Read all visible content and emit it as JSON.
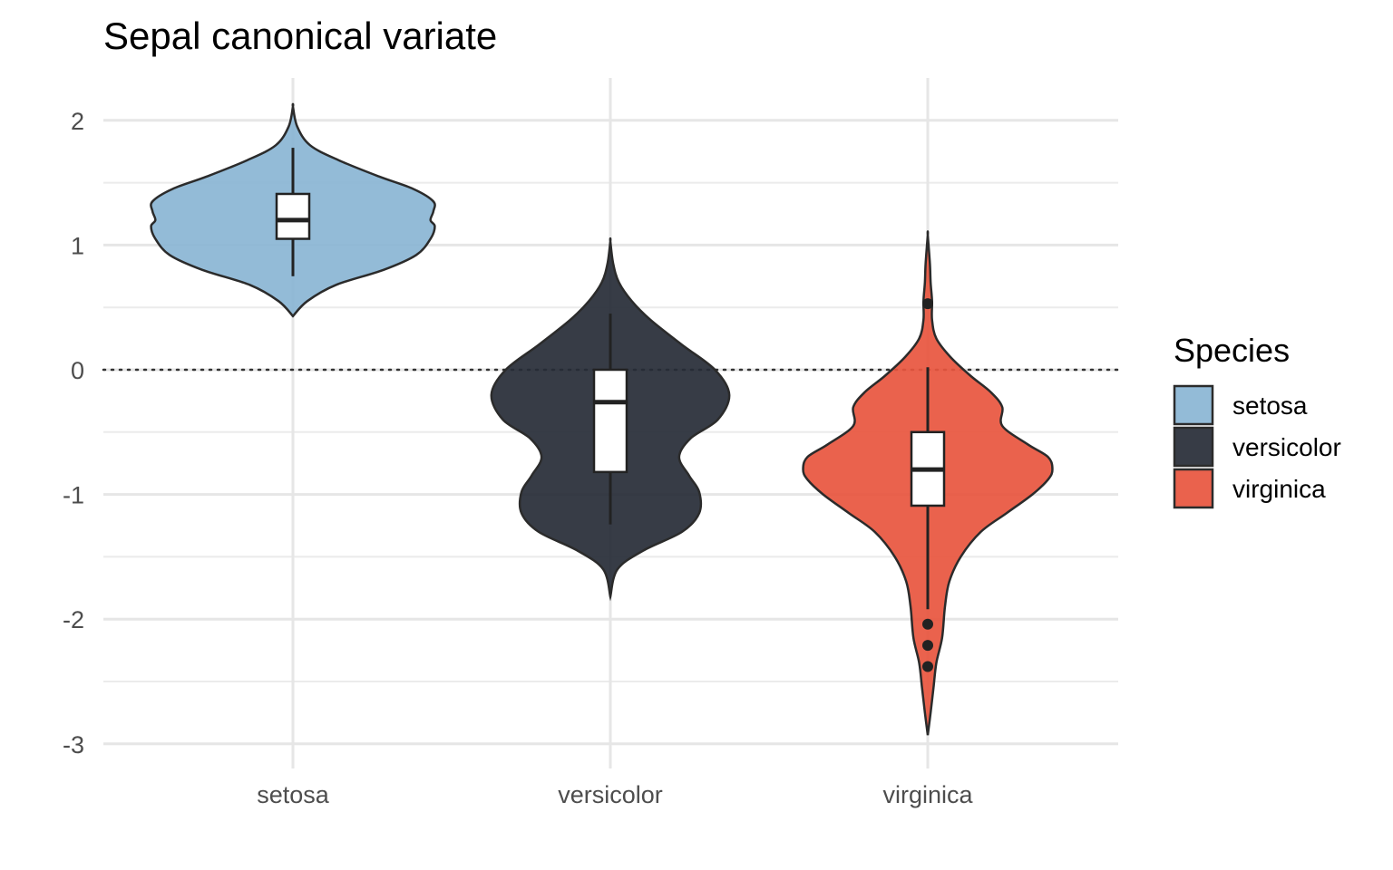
{
  "chart_data": {
    "type": "violin",
    "title": "Sepal canonical variate",
    "xlabel": "",
    "ylabel": "",
    "ylim": [
      -3.1,
      2.3
    ],
    "yticks": [
      2,
      1,
      0,
      -1,
      -2,
      -3
    ],
    "ytick_labels": [
      "2",
      "1",
      "0",
      "-1",
      "-2",
      "-3"
    ],
    "reference_line": {
      "y": 0,
      "style": "dotted"
    },
    "grid": true,
    "legend": {
      "title": "Species",
      "position": "right"
    },
    "categories": [
      "setosa",
      "versicolor",
      "virginica"
    ],
    "series": [
      {
        "name": "setosa",
        "color": "#8AB5D4",
        "box": {
          "q1": 1.05,
          "median": 1.2,
          "q3": 1.41,
          "whisker_low": 0.75,
          "whisker_high": 1.78
        },
        "outliers": [],
        "violin_range": [
          0.43,
          2.11
        ],
        "density": [
          [
            0.43,
            0.0
          ],
          [
            0.55,
            0.1
          ],
          [
            0.68,
            0.3
          ],
          [
            0.8,
            0.63
          ],
          [
            0.92,
            0.86
          ],
          [
            1.05,
            0.96
          ],
          [
            1.15,
            0.99
          ],
          [
            1.2,
            0.96
          ],
          [
            1.27,
            0.98
          ],
          [
            1.35,
            0.98
          ],
          [
            1.45,
            0.84
          ],
          [
            1.55,
            0.6
          ],
          [
            1.68,
            0.32
          ],
          [
            1.8,
            0.12
          ],
          [
            1.95,
            0.03
          ],
          [
            2.11,
            0.0
          ]
        ]
      },
      {
        "name": "versicolor",
        "color": "#262B36",
        "box": {
          "q1": -0.82,
          "median": -0.26,
          "q3": 0.0,
          "whisker_low": -1.24,
          "whisker_high": 0.45
        },
        "outliers": [],
        "violin_range": [
          -1.82,
          1.03
        ],
        "density": [
          [
            -1.82,
            0.0
          ],
          [
            -1.6,
            0.05
          ],
          [
            -1.45,
            0.23
          ],
          [
            -1.3,
            0.5
          ],
          [
            -1.15,
            0.62
          ],
          [
            -0.98,
            0.62
          ],
          [
            -0.85,
            0.55
          ],
          [
            -0.7,
            0.48
          ],
          [
            -0.55,
            0.56
          ],
          [
            -0.4,
            0.75
          ],
          [
            -0.2,
            0.83
          ],
          [
            0.0,
            0.73
          ],
          [
            0.2,
            0.5
          ],
          [
            0.4,
            0.28
          ],
          [
            0.55,
            0.15
          ],
          [
            0.7,
            0.06
          ],
          [
            0.85,
            0.02
          ],
          [
            1.03,
            0.0
          ]
        ]
      },
      {
        "name": "virginica",
        "color": "#E8553E",
        "box": {
          "q1": -1.09,
          "median": -0.8,
          "q3": -0.5,
          "whisker_low": -1.92,
          "whisker_high": 0.02
        },
        "outliers": [
          0.53,
          -2.04,
          -2.21,
          -2.38
        ],
        "violin_range": [
          -2.93,
          1.08
        ],
        "density": [
          [
            -2.93,
            0.0
          ],
          [
            -2.75,
            0.02
          ],
          [
            -2.55,
            0.04
          ],
          [
            -2.35,
            0.06
          ],
          [
            -2.15,
            0.1
          ],
          [
            -1.9,
            0.12
          ],
          [
            -1.7,
            0.15
          ],
          [
            -1.5,
            0.23
          ],
          [
            -1.3,
            0.37
          ],
          [
            -1.15,
            0.55
          ],
          [
            -1.0,
            0.73
          ],
          [
            -0.88,
            0.84
          ],
          [
            -0.8,
            0.87
          ],
          [
            -0.7,
            0.84
          ],
          [
            -0.6,
            0.7
          ],
          [
            -0.45,
            0.52
          ],
          [
            -0.3,
            0.52
          ],
          [
            -0.18,
            0.44
          ],
          [
            -0.05,
            0.3
          ],
          [
            0.1,
            0.16
          ],
          [
            0.25,
            0.06
          ],
          [
            0.4,
            0.03
          ],
          [
            0.55,
            0.03
          ],
          [
            0.7,
            0.02
          ],
          [
            0.85,
            0.015
          ],
          [
            1.08,
            0.0
          ]
        ]
      }
    ]
  }
}
